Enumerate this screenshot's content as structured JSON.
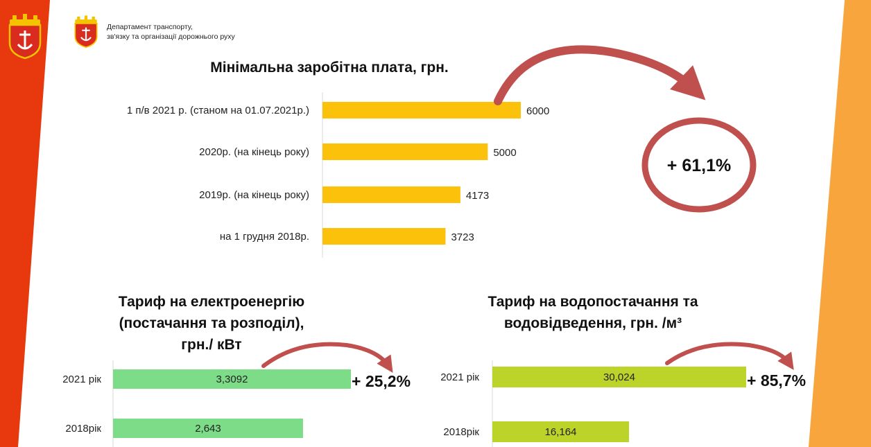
{
  "header": {
    "department_line1": "Департамент  транспорту,",
    "department_line2": "зв'язку та організації  дорожнього руху"
  },
  "colors": {
    "left_band": "#e8380d",
    "right_band": "#f7a53c",
    "coat_of_arms": "#d92b1e",
    "min_wage_bar": "#fcc10a",
    "electricity_bar": "#7ddc88",
    "water_bar": "#bcd32a",
    "arrow": "#c0504d"
  },
  "chart_data": [
    {
      "type": "bar",
      "orientation": "horizontal",
      "title": "Мінімальна заробітна плата, грн.",
      "categories": [
        "1 п/в 2021 р. (станом на 01.07.2021р.)",
        "2020р.  (на кінець року)",
        "2019р. (на кінець року)",
        "на 1 грудня 2018р."
      ],
      "values": [
        6000,
        5000,
        4173,
        3723
      ],
      "value_labels": [
        "6000",
        "5000",
        "4173",
        "3723"
      ],
      "xlim": [
        0,
        6000
      ],
      "grid": false,
      "annotation": "+ 61,1%"
    },
    {
      "type": "bar",
      "orientation": "horizontal",
      "title_lines": [
        "Тариф на електроенергію",
        "(постачання та розподіл),",
        "грн./ кВт"
      ],
      "categories": [
        "2021 рік",
        "2018рік"
      ],
      "values": [
        3.3092,
        2.643
      ],
      "value_labels": [
        "3,3092",
        "2,643"
      ],
      "xlim": [
        0,
        3.3092
      ],
      "grid": false,
      "annotation": "+ 25,2%"
    },
    {
      "type": "bar",
      "orientation": "horizontal",
      "title_lines": [
        "Тариф на водопостачання та",
        "водовідведення, грн. /м³"
      ],
      "categories": [
        "2021 рік",
        "2018рік"
      ],
      "values": [
        30.024,
        16.164
      ],
      "value_labels": [
        "30,024",
        "16,164"
      ],
      "xlim": [
        0,
        30.024
      ],
      "grid": false,
      "annotation": "+ 85,7%"
    }
  ]
}
